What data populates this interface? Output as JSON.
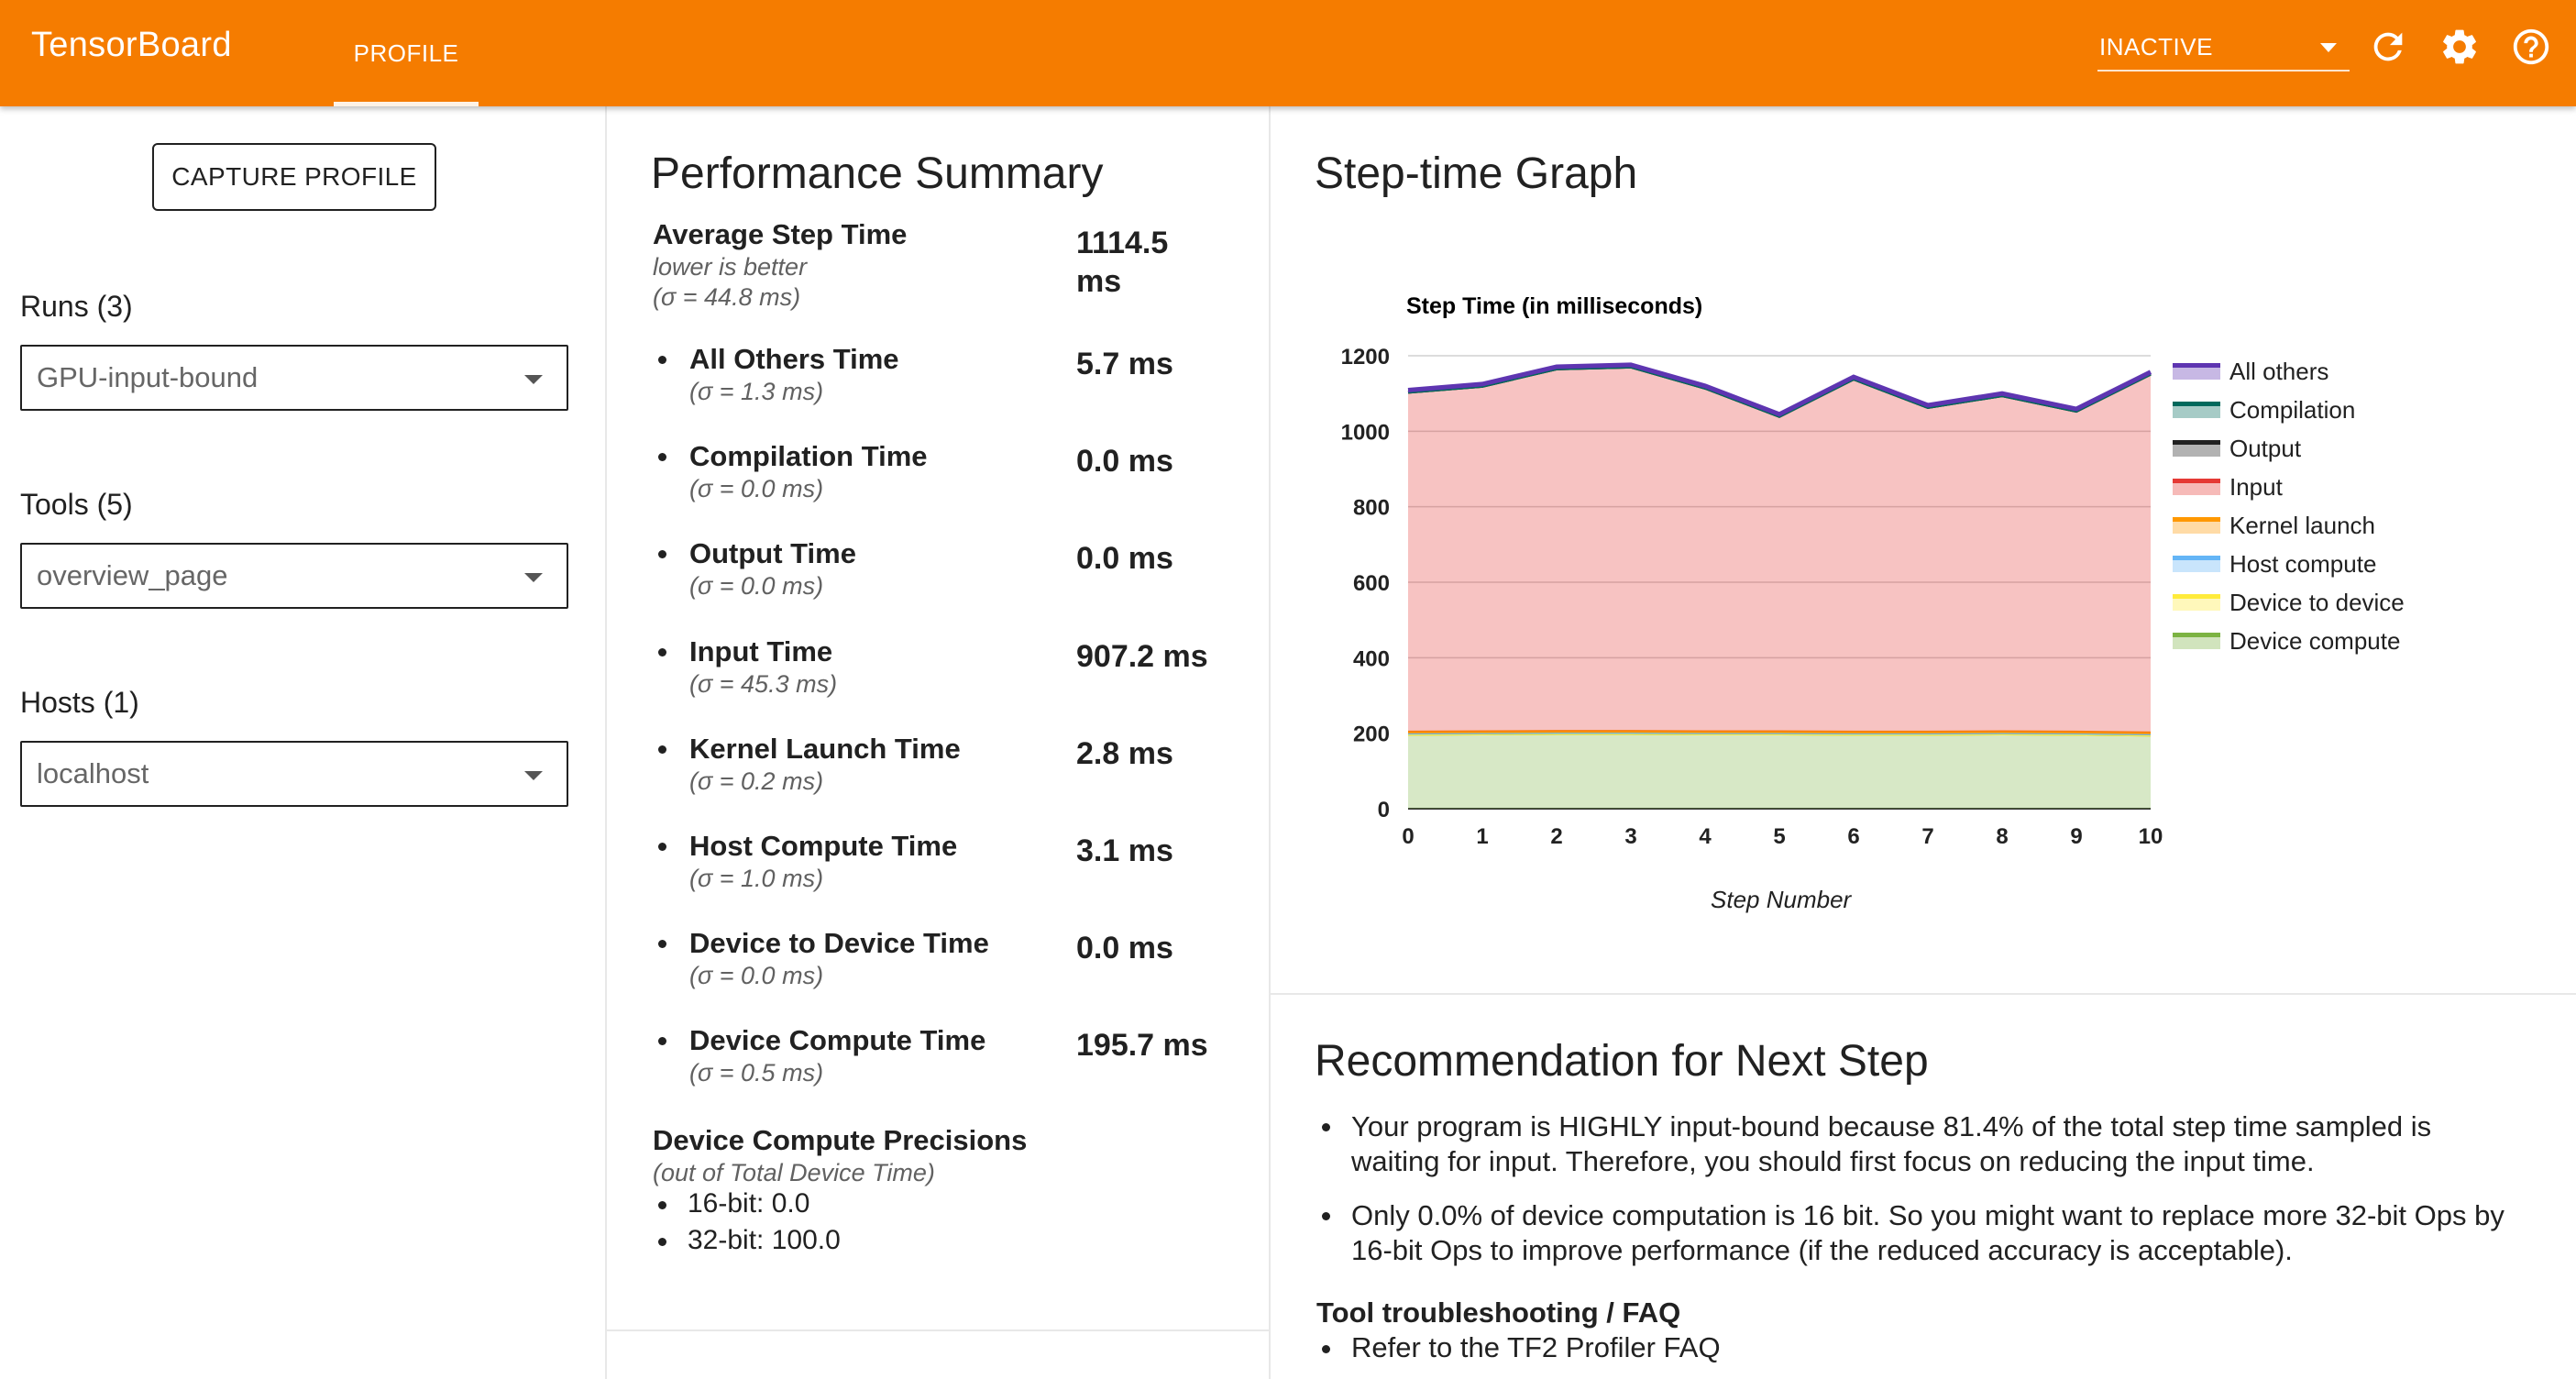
{
  "header": {
    "brand": "TensorBoard",
    "tab_label": "PROFILE",
    "status_value": "INACTIVE",
    "icons": [
      "refresh-icon",
      "settings-icon",
      "help-icon"
    ],
    "accent_color": "#f57c00"
  },
  "sidebar": {
    "capture_label": "CAPTURE PROFILE",
    "runs": {
      "label": "Runs (3)",
      "value": "GPU-input-bound"
    },
    "tools": {
      "label": "Tools (5)",
      "value": "overview_page"
    },
    "hosts": {
      "label": "Hosts (1)",
      "value": "localhost"
    }
  },
  "summary": {
    "title": "Performance Summary",
    "average": {
      "label": "Average Step Time",
      "sub1": "lower is better",
      "sub2": "(σ = 44.8 ms)",
      "value_line1": "1114.5",
      "value_line2": "ms"
    },
    "items": [
      {
        "label": "All Others Time",
        "sigma": "(σ = 1.3 ms)",
        "value": "5.7 ms"
      },
      {
        "label": "Compilation Time",
        "sigma": "(σ = 0.0 ms)",
        "value": "0.0 ms"
      },
      {
        "label": "Output Time",
        "sigma": "(σ = 0.0 ms)",
        "value": "0.0 ms"
      },
      {
        "label": "Input Time",
        "sigma": "(σ = 45.3 ms)",
        "value": "907.2 ms"
      },
      {
        "label": "Kernel Launch Time",
        "sigma": "(σ = 0.2 ms)",
        "value": "2.8 ms"
      },
      {
        "label": "Host Compute Time",
        "sigma": "(σ = 1.0 ms)",
        "value": "3.1 ms"
      },
      {
        "label": "Device to Device Time",
        "sigma": "(σ = 0.0 ms)",
        "value": "0.0 ms"
      },
      {
        "label": "Device Compute Time",
        "sigma": "(σ = 0.5 ms)",
        "value": "195.7 ms"
      }
    ],
    "precisions": {
      "title": "Device Compute Precisions",
      "sub": "(out of Total Device Time)",
      "items": [
        "16-bit: 0.0",
        "32-bit: 100.0"
      ]
    }
  },
  "step_graph": {
    "title": "Step-time Graph"
  },
  "chart_data": {
    "type": "area",
    "title": "Step Time (in milliseconds)",
    "xlabel": "Step Number",
    "ylabel": "",
    "x": [
      0,
      1,
      2,
      3,
      4,
      5,
      6,
      7,
      8,
      9,
      10
    ],
    "xlim": [
      0,
      10
    ],
    "ylim": [
      0,
      1200
    ],
    "yticks": [
      0,
      200,
      400,
      600,
      800,
      1000,
      1200
    ],
    "stacked": true,
    "legend_position": "right",
    "series": [
      {
        "name": "Device compute",
        "color": "#7cb342",
        "values": [
          197,
          198,
          199,
          199,
          198,
          198,
          197,
          197,
          198,
          197,
          195
        ]
      },
      {
        "name": "Device to device",
        "color": "#ffeb3b",
        "values": [
          0,
          0,
          0,
          0,
          0,
          0,
          0,
          0,
          0,
          0,
          0
        ]
      },
      {
        "name": "Host compute",
        "color": "#64b5f6",
        "values": [
          3,
          3,
          3,
          3,
          3,
          3,
          3,
          3,
          3,
          3,
          3
        ]
      },
      {
        "name": "Kernel launch",
        "color": "#ff9800",
        "values": [
          3,
          3,
          3,
          3,
          3,
          3,
          3,
          3,
          3,
          3,
          3
        ]
      },
      {
        "name": "Input",
        "color": "#e53935",
        "values": [
          900,
          915,
          960,
          965,
          910,
          835,
          935,
          860,
          890,
          850,
          950
        ]
      },
      {
        "name": "Output",
        "color": "#212121",
        "values": [
          0,
          0,
          0,
          0,
          0,
          0,
          0,
          0,
          0,
          0,
          0
        ]
      },
      {
        "name": "Compilation",
        "color": "#00695c",
        "values": [
          0,
          0,
          0,
          0,
          0,
          0,
          0,
          0,
          0,
          0,
          0
        ]
      },
      {
        "name": "All others",
        "color": "#5e35b1",
        "values": [
          6,
          6,
          6,
          6,
          6,
          6,
          6,
          6,
          6,
          6,
          6
        ]
      }
    ],
    "legend_order": [
      "All others",
      "Compilation",
      "Output",
      "Input",
      "Kernel launch",
      "Host compute",
      "Device to device",
      "Device compute"
    ]
  },
  "recommendation": {
    "title": "Recommendation for Next Step",
    "items": [
      {
        "line1": "Your program is HIGHLY input-bound because 81.4% of the total step time sampled is",
        "line2": "waiting for input. Therefore, you should first focus on reducing the input time."
      },
      {
        "line1": "Only 0.0% of device computation is 16 bit. So you might want to replace more 32-bit Ops by",
        "line2": "16-bit Ops to improve performance (if the reduced accuracy is acceptable)."
      }
    ],
    "faq_title": "Tool troubleshooting / FAQ",
    "faq_item": "Refer to the TF2 Profiler FAQ"
  }
}
